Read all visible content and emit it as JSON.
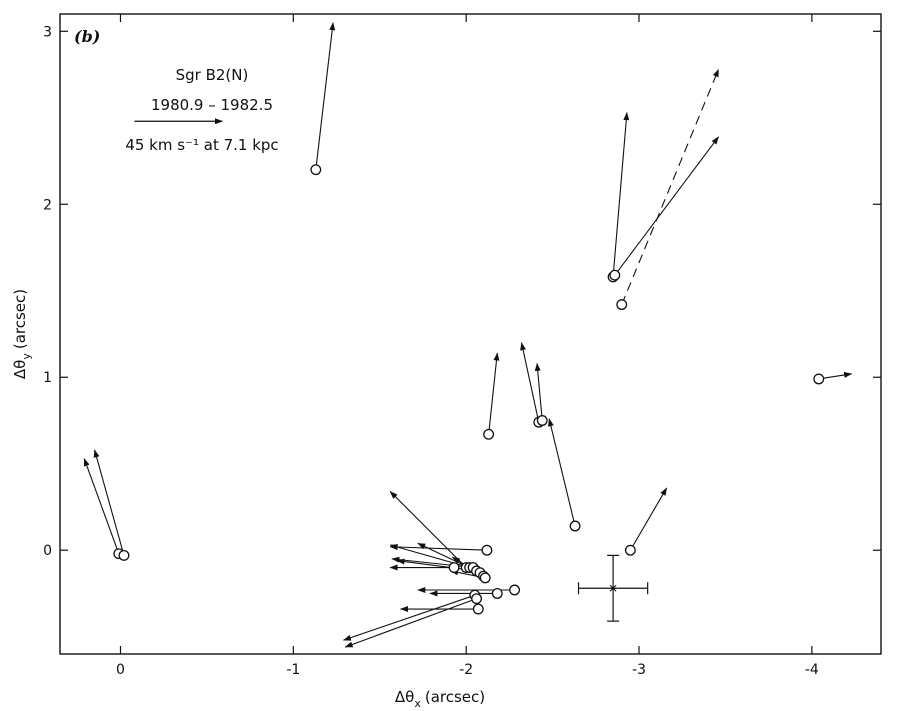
{
  "chart_data": {
    "type": "scatter",
    "panel_label": "(b)",
    "xlabel_base": "Δθ",
    "xlabel_sub": "x",
    "xlabel_unit": "(arcsec)",
    "ylabel_base": "Δθ",
    "ylabel_sub": "y",
    "ylabel_unit": "(arcsec)",
    "xlim": [
      0.35,
      -4.4
    ],
    "ylim": [
      -0.6,
      3.1
    ],
    "xticks": [
      0,
      -1,
      -2,
      -3,
      -4
    ],
    "yticks": [
      0,
      1,
      2,
      3
    ],
    "annotation": {
      "source": "Sgr B2(N)",
      "epoch": "1980.9 – 1982.5",
      "scale": "45 km s⁻¹ at 7.1 kpc",
      "scale_arrow": {
        "x0": -0.08,
        "x1": -0.59,
        "y": 2.48
      }
    },
    "error_cross": {
      "x": -2.85,
      "y": -0.22,
      "xerr": 0.2,
      "yerr": 0.19
    },
    "points": [
      {
        "x": 0.01,
        "y": -0.02,
        "dx": 0.2,
        "dy": 0.55,
        "dashed": false
      },
      {
        "x": -0.02,
        "y": -0.03,
        "dx": 0.17,
        "dy": 0.61,
        "dashed": false
      },
      {
        "x": -1.13,
        "y": 2.2,
        "dx": -0.1,
        "dy": 0.85,
        "dashed": false
      },
      {
        "x": -2.85,
        "y": 1.58,
        "dx": -0.08,
        "dy": 0.95,
        "dashed": false
      },
      {
        "x": -2.86,
        "y": 1.59,
        "dx": -0.6,
        "dy": 0.8,
        "dashed": false
      },
      {
        "x": -2.9,
        "y": 1.42,
        "dx": -0.56,
        "dy": 1.36,
        "dashed": true
      },
      {
        "x": -2.13,
        "y": 0.67,
        "dx": -0.05,
        "dy": 0.47,
        "dashed": false
      },
      {
        "x": -2.42,
        "y": 0.74,
        "dx": 0.1,
        "dy": 0.46,
        "dashed": false
      },
      {
        "x": -2.44,
        "y": 0.75,
        "dx": 0.03,
        "dy": 0.33,
        "dashed": false
      },
      {
        "x": -2.63,
        "y": 0.14,
        "dx": 0.15,
        "dy": 0.62,
        "dashed": false
      },
      {
        "x": -4.04,
        "y": 0.99,
        "dx": -0.19,
        "dy": 0.03,
        "dashed": false
      },
      {
        "x": -2.95,
        "y": 0.0,
        "dx": -0.21,
        "dy": 0.36,
        "dashed": false
      },
      {
        "x": -2.12,
        "y": 0.0,
        "dx": 0.56,
        "dy": 0.02,
        "dashed": false
      },
      {
        "x": -2.0,
        "y": -0.1,
        "dx": 0.44,
        "dy": 0.44,
        "dashed": false
      },
      {
        "x": -2.02,
        "y": -0.1,
        "dx": 0.46,
        "dy": 0.13,
        "dashed": false
      },
      {
        "x": -2.04,
        "y": -0.1,
        "dx": 0.47,
        "dy": 0.05,
        "dashed": false
      },
      {
        "x": -2.06,
        "y": -0.12,
        "dx": 0.46,
        "dy": 0.06,
        "dashed": false
      },
      {
        "x": -2.08,
        "y": -0.13,
        "dx": 0.36,
        "dy": 0.17,
        "dashed": false
      },
      {
        "x": -2.1,
        "y": -0.15,
        "dx": 0.18,
        "dy": 0.11,
        "dashed": false
      },
      {
        "x": -1.93,
        "y": -0.1,
        "dx": 0.37,
        "dy": 0.0,
        "dashed": false
      },
      {
        "x": -2.11,
        "y": -0.16,
        "dx": 0.2,
        "dy": 0.04,
        "dashed": false
      },
      {
        "x": -2.18,
        "y": -0.25,
        "dx": 0.39,
        "dy": 0.0,
        "dashed": false
      },
      {
        "x": -2.28,
        "y": -0.23,
        "dx": 0.56,
        "dy": 0.0,
        "dashed": false
      },
      {
        "x": -2.05,
        "y": -0.26,
        "dx": 0.76,
        "dy": -0.26,
        "dashed": false
      },
      {
        "x": -2.06,
        "y": -0.28,
        "dx": 0.76,
        "dy": -0.28,
        "dashed": false
      },
      {
        "x": -2.07,
        "y": -0.34,
        "dx": 0.45,
        "dy": 0.0,
        "dashed": false
      }
    ]
  }
}
